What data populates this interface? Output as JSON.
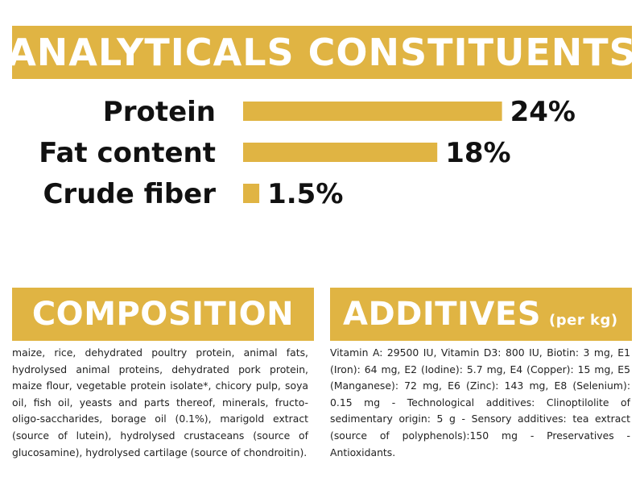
{
  "title": "ANALYTICALS CONSTITUENTS",
  "chart_data": {
    "type": "bar",
    "orientation": "horizontal",
    "categories": [
      "Protein",
      "Fat content",
      "Crude fiber"
    ],
    "values": [
      24,
      18,
      1.5
    ],
    "value_labels": [
      "24%",
      "18%",
      "1.5%"
    ],
    "unit": "%",
    "bar_color": "#e0b443",
    "grid": false,
    "legend": "none"
  },
  "composition": {
    "heading": "COMPOSITION",
    "text": "maize, rice, dehydrated poultry protein, animal fats, hydrolysed animal proteins, dehydrated pork protein, maize flour, vegetable protein isolate*, chicory pulp, soya oil, fish oil, yeasts and parts thereof, minerals, fructo-oligo-saccharides, borage oil (0.1%), marigold extract (source of lutein), hydrolysed crustaceans (source of glucosamine), hydrolysed cartilage (source of chondroitin)."
  },
  "additives": {
    "heading": "ADDITIVES",
    "subheading": "(per kg)",
    "text": "Vitamin A: 29500 IU, Vitamin D3: 800 IU, Biotin: 3 mg, E1 (Iron): 64 mg, E2 (Iodine): 5.7 mg, E4 (Copper): 15 mg, E5 (Manganese): 72 mg, E6 (Zinc): 143 mg, E8 (Selenium): 0.15 mg - Technological additives: Clinoptilolite of sedimentary origin: 5 g - Sensory additives: tea extract (source of polyphenols):150 mg - Preservatives - Antioxidants."
  },
  "colors": {
    "accent": "#e0b443",
    "banner_text": "#ffffff",
    "text": "#111111"
  }
}
